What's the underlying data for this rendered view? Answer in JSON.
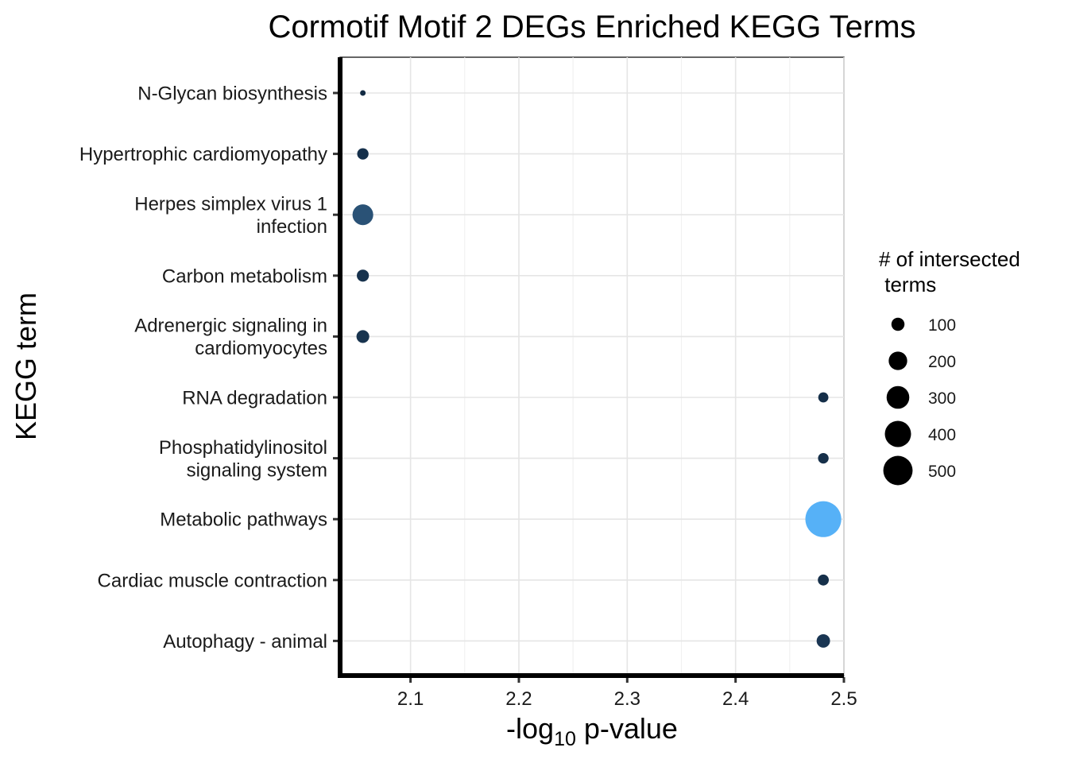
{
  "chart_data": {
    "type": "scatter",
    "title": "Cormotif Motif 2 DEGs Enriched KEGG Terms",
    "xlabel_prefix": "-log",
    "xlabel_subscript": "10",
    "xlabel_suffix": " p-value",
    "ylabel": "KEGG term",
    "xlim": [
      2.035,
      2.5
    ],
    "xticks": [
      2.1,
      2.2,
      2.3,
      2.4,
      2.5
    ],
    "grid": true,
    "legend": {
      "title_lines": [
        "# of intersected",
        " terms"
      ],
      "placement": "right",
      "entries": [
        {
          "label": "100",
          "value": 100
        },
        {
          "label": "200",
          "value": 200
        },
        {
          "label": "300",
          "value": 300
        },
        {
          "label": "400",
          "value": 400
        },
        {
          "label": "500",
          "value": 500
        }
      ]
    },
    "points": [
      {
        "term_lines": [
          "N-Glycan biosynthesis"
        ],
        "x": 2.056,
        "count": 18,
        "color": "#132b43"
      },
      {
        "term_lines": [
          "Hypertrophic cardiomyopathy"
        ],
        "x": 2.056,
        "count": 75,
        "color": "#15304b"
      },
      {
        "term_lines": [
          "Herpes simplex virus 1",
          "infection"
        ],
        "x": 2.056,
        "count": 250,
        "color": "#2a5276"
      },
      {
        "term_lines": [
          "Carbon metabolism"
        ],
        "x": 2.056,
        "count": 85,
        "color": "#17324d"
      },
      {
        "term_lines": [
          "Adrenergic signaling in",
          "cardiomyocytes"
        ],
        "x": 2.056,
        "count": 95,
        "color": "#18344f"
      },
      {
        "term_lines": [
          "RNA degradation"
        ],
        "x": 2.481,
        "count": 60,
        "color": "#152f49"
      },
      {
        "term_lines": [
          "Phosphatidylinositol",
          "signaling system"
        ],
        "x": 2.481,
        "count": 65,
        "color": "#16304a"
      },
      {
        "term_lines": [
          "Metabolic pathways"
        ],
        "x": 2.481,
        "count": 750,
        "color": "#56b1f7"
      },
      {
        "term_lines": [
          "Cardiac muscle contraction"
        ],
        "x": 2.481,
        "count": 70,
        "color": "#16304a"
      },
      {
        "term_lines": [
          "Autophagy - animal"
        ],
        "x": 2.481,
        "count": 105,
        "color": "#1a3653"
      }
    ]
  }
}
